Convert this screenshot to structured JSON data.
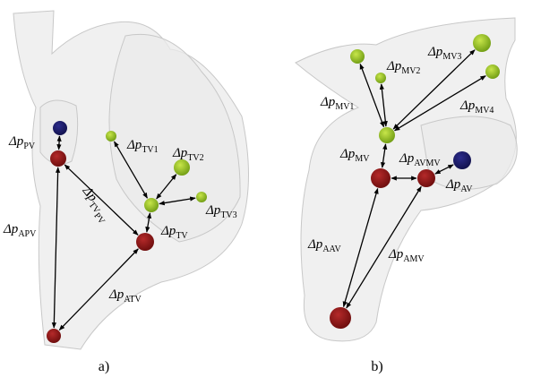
{
  "panels": [
    {
      "caption": "a)",
      "labels": [
        {
          "symbol": "Δp",
          "sub": "PV"
        },
        {
          "symbol": "Δp",
          "sub": "APV"
        },
        {
          "symbol": "Δp",
          "sub": "TV",
          "subsub": "PV"
        },
        {
          "symbol": "Δp",
          "sub": "ATV"
        },
        {
          "symbol": "Δp",
          "sub": "TV1"
        },
        {
          "symbol": "Δp",
          "sub": "TV2"
        },
        {
          "symbol": "Δp",
          "sub": "TV3"
        },
        {
          "symbol": "Δp",
          "sub": "TV"
        }
      ]
    },
    {
      "caption": "b)",
      "labels": [
        {
          "symbol": "Δp",
          "sub": "MV1"
        },
        {
          "symbol": "Δp",
          "sub": "MV2"
        },
        {
          "symbol": "Δp",
          "sub": "MV3"
        },
        {
          "symbol": "Δp",
          "sub": "MV4"
        },
        {
          "symbol": "Δp",
          "sub": "MV"
        },
        {
          "symbol": "Δp",
          "sub": "AVMV"
        },
        {
          "symbol": "Δp",
          "sub": "AV"
        },
        {
          "symbol": "Δp",
          "sub": "AAV"
        },
        {
          "symbol": "Δp",
          "sub": "AMV"
        }
      ]
    }
  ]
}
